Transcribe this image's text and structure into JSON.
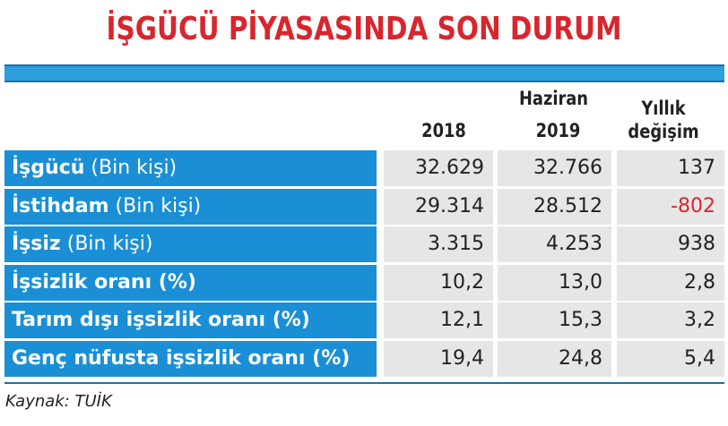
{
  "title": "İŞGÜCÜ PİYASASINDA SON DURUM",
  "table": {
    "group_header": "Haziran",
    "columns": [
      "2018",
      "2019",
      "Yıllık değişim"
    ],
    "rows": [
      {
        "label": "İşgücü",
        "unit": "(Bin kişi)",
        "cells": [
          "32.629",
          "32.766",
          "137"
        ]
      },
      {
        "label": "İstihdam",
        "unit": "(Bin kişi)",
        "cells": [
          "29.314",
          "28.512",
          "-802"
        ],
        "negative_color": "#d7262e"
      },
      {
        "label": "İşsiz",
        "unit": "(Bin kişi)",
        "cells": [
          "3.315",
          "4.253",
          "938"
        ]
      },
      {
        "label": "İşsizlik oranı (%)",
        "cells": [
          "10,2",
          "13,0",
          "2,8"
        ]
      },
      {
        "label": "Tarım dışı işsizlik oranı (%)",
        "cells": [
          "12,1",
          "15,3",
          "3,2"
        ]
      },
      {
        "label": "Genç nüfusta işsizlik oranı (%)",
        "cells": [
          "19,4",
          "24,8",
          "5,4"
        ]
      }
    ]
  },
  "source": "Kaynak: TUİK"
}
